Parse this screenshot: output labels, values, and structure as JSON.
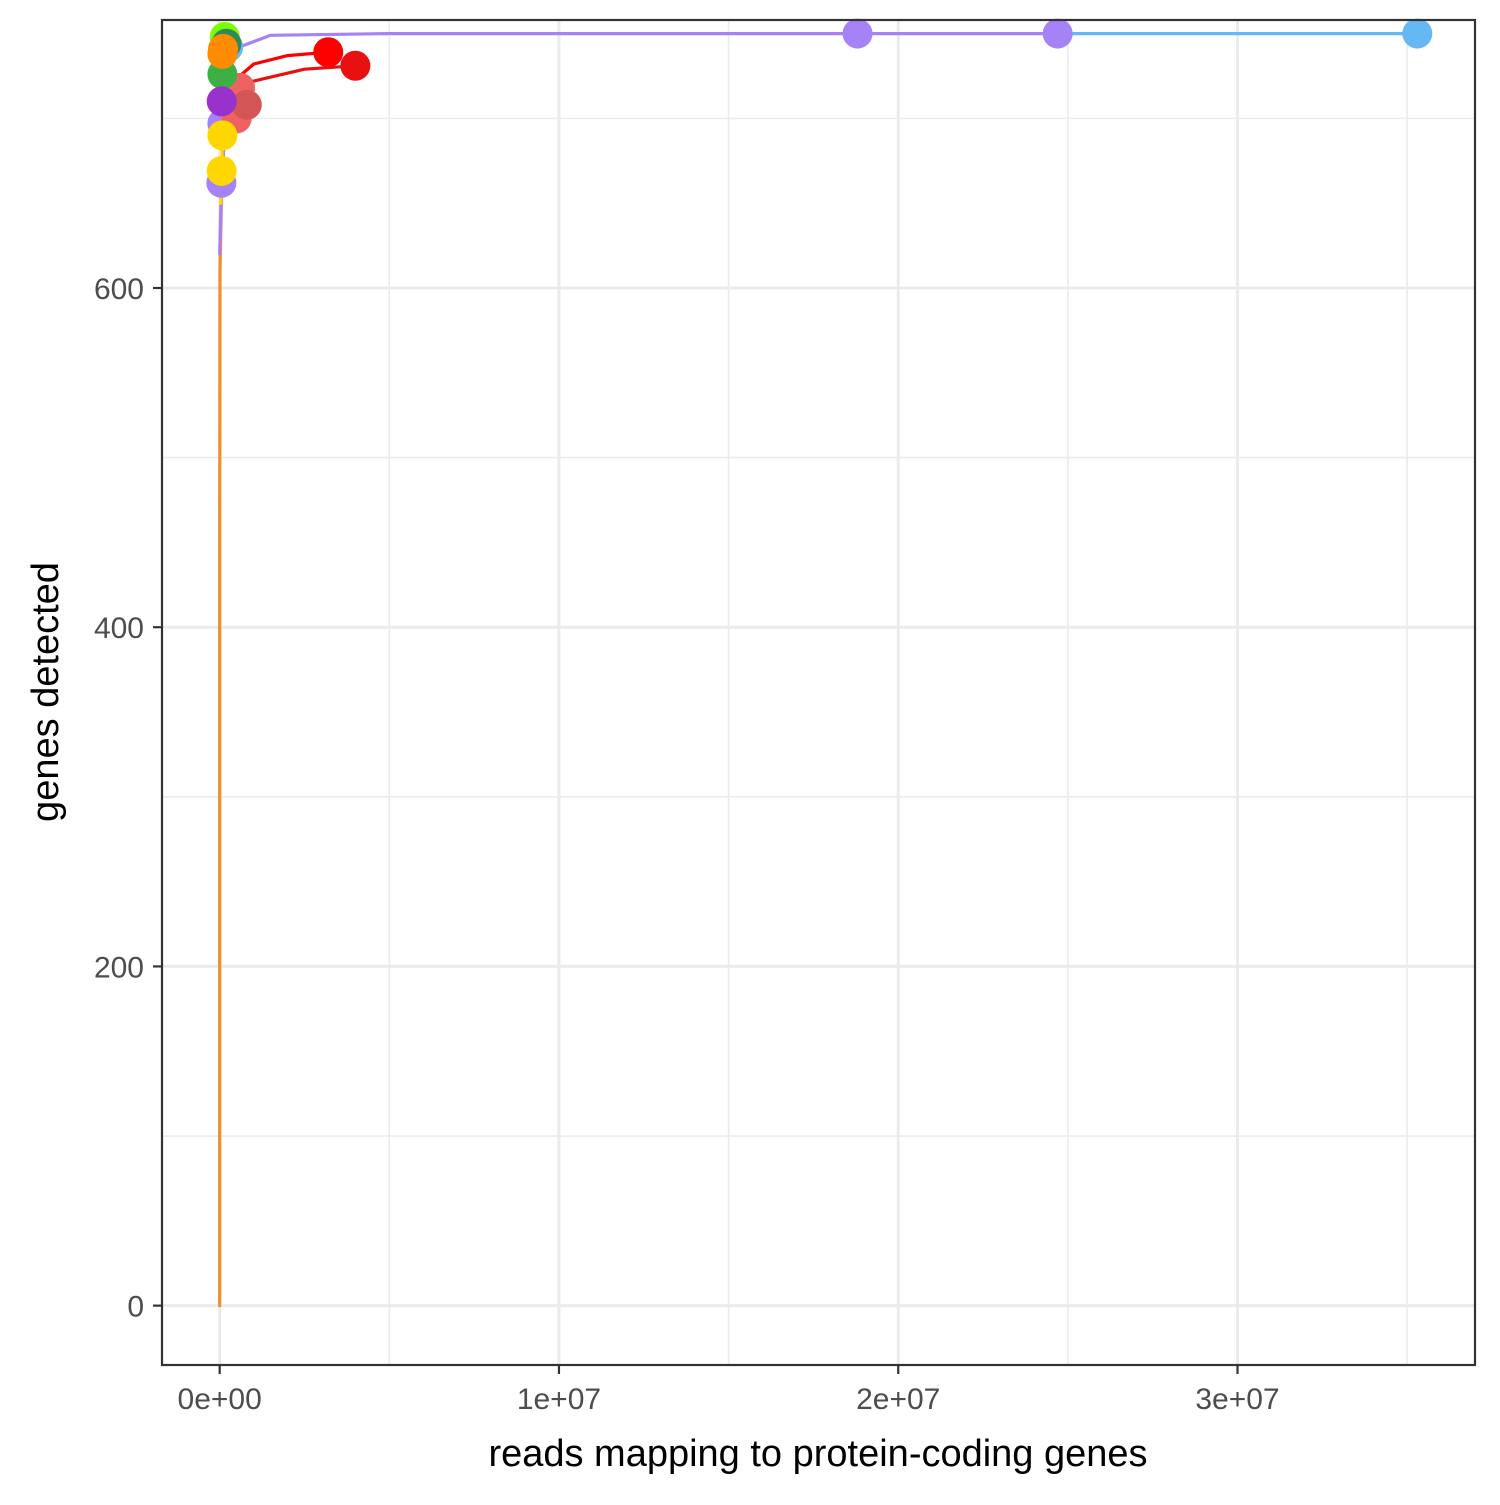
{
  "chart_data": {
    "type": "line",
    "title": "",
    "xlabel": "reads mapping to protein-coding genes",
    "ylabel": "genes detected",
    "xlim": [
      -1700000,
      37000000
    ],
    "ylim": [
      -35,
      758
    ],
    "x_ticks": [
      {
        "value": 0,
        "label": "0e+00"
      },
      {
        "value": 10000000,
        "label": "1e+07"
      },
      {
        "value": 20000000,
        "label": "2e+07"
      },
      {
        "value": 30000000,
        "label": "3e+07"
      }
    ],
    "y_ticks": [
      {
        "value": 0,
        "label": "0"
      },
      {
        "value": 200,
        "label": "200"
      },
      {
        "value": 400,
        "label": "400"
      },
      {
        "value": 600,
        "label": "600"
      }
    ],
    "grid": true,
    "legend": "none",
    "point_size": 15,
    "series": [
      {
        "color": "#F28E2B",
        "points": [
          [
            0,
            0
          ],
          [
            1000,
            450
          ],
          [
            10000,
            610
          ],
          [
            100000,
            700
          ]
        ],
        "markers": []
      },
      {
        "color": "#A582F5",
        "points": [
          [
            0,
            620
          ],
          [
            50000,
            660
          ],
          [
            300000,
            740
          ],
          [
            1500000,
            749
          ],
          [
            5000000,
            750
          ],
          [
            18800000,
            750
          ],
          [
            24700000,
            750
          ]
        ],
        "markers": [
          [
            18800000,
            750
          ],
          [
            24700000,
            750
          ],
          [
            50000,
            662
          ],
          [
            80000,
            697
          ]
        ]
      },
      {
        "color": "#66B8F5",
        "points": [
          [
            24700000,
            750
          ],
          [
            35300000,
            750
          ]
        ],
        "markers": [
          [
            35300000,
            750
          ],
          [
            250000,
            742
          ]
        ]
      },
      {
        "color": "#FF0000",
        "points": [
          [
            300000,
            720
          ],
          [
            1000000,
            732
          ],
          [
            2000000,
            737
          ],
          [
            3200000,
            739
          ]
        ],
        "markers": [
          [
            3200000,
            739
          ]
        ]
      },
      {
        "color": "#E81010",
        "points": [
          [
            300000,
            705
          ],
          [
            1000000,
            722
          ],
          [
            2500000,
            729
          ],
          [
            4000000,
            731
          ]
        ],
        "markers": [
          [
            4000000,
            731
          ]
        ]
      },
      {
        "color": "#F06262",
        "points": [
          [
            200000,
            700
          ],
          [
            600000,
            718
          ]
        ],
        "markers": [
          [
            600000,
            718
          ],
          [
            500000,
            700
          ]
        ]
      },
      {
        "color": "#D45555",
        "points": [
          [
            200000,
            695
          ],
          [
            800000,
            708
          ]
        ],
        "markers": [
          [
            800000,
            708
          ]
        ]
      },
      {
        "color": "#7CFC00",
        "points": [
          [
            50000,
            700
          ],
          [
            150000,
            748
          ]
        ],
        "markers": [
          [
            150000,
            748
          ]
        ]
      },
      {
        "color": "#2E8B57",
        "points": [
          [
            50000,
            700
          ],
          [
            200000,
            744
          ]
        ],
        "markers": [
          [
            200000,
            744
          ]
        ]
      },
      {
        "color": "#3CB043",
        "points": [
          [
            50000,
            700
          ],
          [
            80000,
            726
          ]
        ],
        "markers": [
          [
            80000,
            726
          ]
        ]
      },
      {
        "color": "#9932CC",
        "points": [
          [
            30000,
            690
          ],
          [
            60000,
            710
          ]
        ],
        "markers": [
          [
            60000,
            710
          ]
        ]
      },
      {
        "color": "#FFD700",
        "points": [
          [
            30000,
            650
          ],
          [
            60000,
            669
          ],
          [
            80000,
            690
          ]
        ],
        "markers": [
          [
            60000,
            669
          ],
          [
            80000,
            690
          ]
        ]
      },
      {
        "color": "#FF8C00",
        "points": [
          [
            30000,
            700
          ],
          [
            80000,
            738
          ]
        ],
        "markers": [
          [
            80000,
            738
          ],
          [
            100000,
            741
          ]
        ]
      }
    ]
  }
}
